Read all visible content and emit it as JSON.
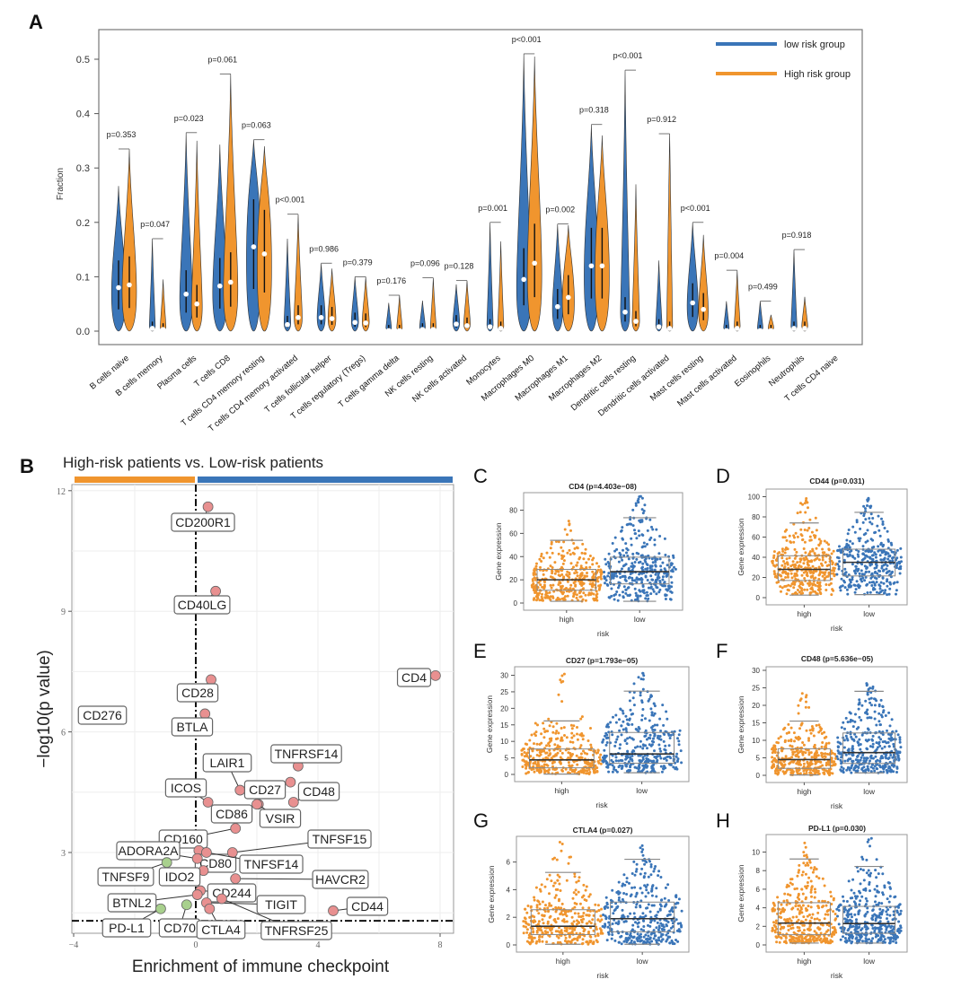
{
  "colors": {
    "low": "#3a75b8",
    "high": "#f0952e",
    "up_point": "#e89090",
    "down_point": "#a8d08d",
    "axis": "#555555",
    "grid": "#eeeeee"
  },
  "chart_data": [
    {
      "id": "A",
      "type": "violin",
      "panel_label": "A",
      "title": "",
      "xlabel": "",
      "ylabel": "Fraction",
      "ylim": [
        0,
        0.55
      ],
      "yticks": [
        0.0,
        0.1,
        0.2,
        0.3,
        0.4,
        0.5
      ],
      "ytick_labels": [
        "0.0",
        "0.1",
        "0.2",
        "0.3",
        "0.4",
        "0.5"
      ],
      "legend": {
        "position": "top-right",
        "entries": [
          {
            "name": "low risk group",
            "color": "#3a75b8"
          },
          {
            "name": "High risk group",
            "color": "#f0952e"
          }
        ]
      },
      "categories": [
        "B cells naive",
        "B cells memory",
        "Plasma cells",
        "T cells CD8",
        "T cells CD4 memory resting",
        "T cells CD4 memory activated",
        "T cells follicular helper",
        "T cells regulatory (Tregs)",
        "T cells gamma delta",
        "NK cells resting",
        "NK cells activated",
        "Monocytes",
        "Macrophages M0",
        "Macrophages M1",
        "Macrophages M2",
        "Dendritic cells resting",
        "Dendritic cells activated",
        "Mast cells resting",
        "Mast cells activated",
        "Eosinophils",
        "Neutrophils",
        "T cells CD4 naive"
      ],
      "p_values": [
        "p=0.353",
        "p=0.047",
        "p=0.023",
        "p=0.061",
        "p=0.063",
        "p<0.001",
        "p=0.986",
        "p=0.379",
        "p=0.176",
        "p=0.096",
        "p=0.128",
        "p=0.001",
        "p<0.001",
        "p=0.002",
        "p=0.318",
        "p<0.001",
        "p=0.912",
        "p<0.001",
        "p=0.004",
        "p=0.499",
        "p=0.918",
        ""
      ],
      "series": [
        {
          "name": "low risk group",
          "medians": [
            0.08,
            0.005,
            0.068,
            0.083,
            0.155,
            0.012,
            0.025,
            0.016,
            0.001,
            0.003,
            0.013,
            0.008,
            0.095,
            0.045,
            0.12,
            0.035,
            0.008,
            0.052,
            0.001,
            0.001,
            0.005,
            0
          ],
          "max": [
            0.267,
            0.17,
            0.365,
            0.343,
            0.352,
            0.17,
            0.125,
            0.1,
            0.052,
            0.056,
            0.086,
            0.2,
            0.51,
            0.197,
            0.38,
            0.48,
            0.13,
            0.2,
            0.055,
            0.055,
            0.15,
            0
          ]
        },
        {
          "name": "High risk group",
          "medians": [
            0.085,
            0.003,
            0.05,
            0.09,
            0.142,
            0.025,
            0.023,
            0.015,
            0.001,
            0.003,
            0.01,
            0.005,
            0.125,
            0.062,
            0.12,
            0.018,
            0.005,
            0.04,
            0.005,
            0.001,
            0.005,
            0
          ],
          "max": [
            0.335,
            0.095,
            0.35,
            0.473,
            0.34,
            0.215,
            0.115,
            0.1,
            0.066,
            0.098,
            0.093,
            0.165,
            0.505,
            0.195,
            0.36,
            0.27,
            0.363,
            0.177,
            0.112,
            0.03,
            0.063,
            0
          ]
        }
      ]
    },
    {
      "id": "B",
      "type": "scatter",
      "panel_label": "B",
      "title": "High-risk patients  vs. Low-risk patients",
      "xlabel": "Enrichment of immune checkpoint",
      "ylabel": "−log10(p value)",
      "xlim": [
        -4,
        8.4
      ],
      "ylim": [
        0.8,
        12
      ],
      "xticks": [
        -4,
        0,
        4,
        8
      ],
      "xtick_labels": [
        "−4",
        "0",
        "4",
        "8"
      ],
      "yticks": [
        3,
        6,
        9,
        12
      ],
      "ytick_labels": [
        "3",
        "6",
        "9",
        "12"
      ],
      "vline_x": 0,
      "hline_y": 1.3,
      "points": [
        {
          "label": "CD200R1",
          "x": 0.4,
          "y": 11.6,
          "group": "up"
        },
        {
          "label": "CD40LG",
          "x": 0.65,
          "y": 9.5,
          "group": "up"
        },
        {
          "label": "CD4",
          "x": 7.85,
          "y": 7.4,
          "group": "up"
        },
        {
          "label": "CD28",
          "x": 0.5,
          "y": 7.3,
          "group": "up"
        },
        {
          "label": "CD276",
          "x": -3.5,
          "y": 6.4,
          "group": "down"
        },
        {
          "label": "BTLA",
          "x": 0.3,
          "y": 6.45,
          "group": "up"
        },
        {
          "label": "TNFRSF14",
          "x": 3.35,
          "y": 5.15,
          "group": "up"
        },
        {
          "label": "LAIR1",
          "x": 1.45,
          "y": 4.55,
          "group": "up"
        },
        {
          "label": "CD27",
          "x": 3.1,
          "y": 4.75,
          "group": "up"
        },
        {
          "label": "CD48",
          "x": 3.2,
          "y": 4.25,
          "group": "up"
        },
        {
          "label": "ICOS",
          "x": 0.4,
          "y": 4.25,
          "group": "up"
        },
        {
          "label": "CD86",
          "x": 2.05,
          "y": 4.2,
          "group": "up"
        },
        {
          "label": "VSIR",
          "x": 2.0,
          "y": 4.2,
          "group": "up"
        },
        {
          "label": "CD160",
          "x": 1.3,
          "y": 3.6,
          "group": "up"
        },
        {
          "label": "CD80",
          "x": 0.1,
          "y": 3.05,
          "group": "up"
        },
        {
          "label": "TNFSF15",
          "x": 1.2,
          "y": 3.0,
          "group": "up"
        },
        {
          "label": "ADORA2A",
          "x": 0.05,
          "y": 2.85,
          "group": "up"
        },
        {
          "label": "TNFSF14",
          "x": 0.35,
          "y": 3.0,
          "group": "up"
        },
        {
          "label": "TNFSF9",
          "x": -0.95,
          "y": 2.75,
          "group": "down"
        },
        {
          "label": "IDO2",
          "x": 0.25,
          "y": 2.55,
          "group": "up"
        },
        {
          "label": "HAVCR2",
          "x": 1.3,
          "y": 2.35,
          "group": "up"
        },
        {
          "label": "CD244",
          "x": 0.15,
          "y": 2.05,
          "group": "up"
        },
        {
          "label": "BTNL2",
          "x": 0.05,
          "y": 1.95,
          "group": "up"
        },
        {
          "label": "TIGIT",
          "x": 0.35,
          "y": 1.75,
          "group": "up"
        },
        {
          "label": "TNFRSF25",
          "x": 0.85,
          "y": 1.85,
          "group": "up"
        },
        {
          "label": "CD44",
          "x": 4.5,
          "y": 1.55,
          "group": "up"
        },
        {
          "label": "PD-L1",
          "x": -1.15,
          "y": 1.6,
          "group": "down"
        },
        {
          "label": "CD70",
          "x": -0.3,
          "y": 1.7,
          "group": "down"
        },
        {
          "label": "CTLA4",
          "x": 0.45,
          "y": 1.6,
          "group": "up"
        }
      ]
    },
    {
      "id": "C",
      "type": "box",
      "panel_label": "C",
      "title": "CD4 (p=4.403e−08)",
      "xlabel": "risk",
      "ylabel": "Gene expression",
      "categories": [
        "high",
        "low"
      ],
      "ylim": [
        0,
        92
      ],
      "yticks": [
        0,
        20,
        40,
        60,
        80
      ],
      "boxes": [
        {
          "group": "high",
          "min": 1.5,
          "q1": 11,
          "median": 20,
          "q3": 29,
          "max": 54,
          "outlier_max": 71
        },
        {
          "group": "low",
          "min": 1.5,
          "q1": 16.5,
          "median": 27,
          "q3": 39.5,
          "max": 73.5,
          "outlier_max": 92
        }
      ]
    },
    {
      "id": "D",
      "type": "box",
      "panel_label": "D",
      "title": "CD44 (p=0.031)",
      "xlabel": "risk",
      "ylabel": "Gene expression",
      "categories": [
        "high",
        "low"
      ],
      "ylim": [
        0,
        104
      ],
      "yticks": [
        0,
        20,
        40,
        60,
        80,
        100
      ],
      "boxes": [
        {
          "group": "high",
          "min": 2.5,
          "q1": 17,
          "median": 28,
          "q3": 41.5,
          "max": 74,
          "outlier_max": 100
        },
        {
          "group": "low",
          "min": 3,
          "q1": 21.5,
          "median": 35,
          "q3": 48,
          "max": 84.5,
          "outlier_max": 99
        }
      ]
    },
    {
      "id": "E",
      "type": "box",
      "panel_label": "E",
      "title": "CD27 (p=1.793e−05)",
      "xlabel": "risk",
      "ylabel": "Gene expression",
      "categories": [
        "high",
        "low"
      ],
      "ylim": [
        0,
        31.5
      ],
      "yticks": [
        0,
        5,
        10,
        15,
        20,
        25,
        30
      ],
      "boxes": [
        {
          "group": "high",
          "min": 0.1,
          "q1": 2,
          "median": 4.4,
          "q3": 7.7,
          "max": 16.2,
          "outlier_max": 31.5
        },
        {
          "group": "low",
          "min": 0.5,
          "q1": 3.4,
          "median": 6.2,
          "q3": 12.7,
          "max": 25.2,
          "outlier_max": 31
        }
      ]
    },
    {
      "id": "F",
      "type": "box",
      "panel_label": "F",
      "title": "CD48 (p=5.636e−05)",
      "xlabel": "risk",
      "ylabel": "Gene expression",
      "categories": [
        "high",
        "low"
      ],
      "ylim": [
        0,
        30
      ],
      "yticks": [
        0,
        5,
        10,
        15,
        20,
        25,
        30
      ],
      "boxes": [
        {
          "group": "high",
          "min": 0.1,
          "q1": 2,
          "median": 4.5,
          "q3": 7.6,
          "max": 15.5,
          "outlier_max": 23.5
        },
        {
          "group": "low",
          "min": 0.7,
          "q1": 3.4,
          "median": 6.5,
          "q3": 12.1,
          "max": 24,
          "outlier_max": 27.2
        }
      ]
    },
    {
      "id": "G",
      "type": "box",
      "panel_label": "G",
      "title": "CTLA4 (p=0.027)",
      "xlabel": "risk",
      "ylabel": "Gene expression",
      "categories": [
        "high",
        "low"
      ],
      "ylim": [
        0,
        7.6
      ],
      "yticks": [
        0,
        2,
        4,
        6
      ],
      "boxes": [
        {
          "group": "high",
          "min": 0.05,
          "q1": 0.75,
          "median": 1.35,
          "q3": 2.55,
          "max": 5.25,
          "outlier_max": 7.5
        },
        {
          "group": "low",
          "min": 0.05,
          "q1": 0.95,
          "median": 1.9,
          "q3": 3.1,
          "max": 6.2,
          "outlier_max": 7.4
        }
      ]
    },
    {
      "id": "H",
      "type": "box",
      "panel_label": "H",
      "title": "PD-L1 (p=0.030)",
      "xlabel": "risk",
      "ylabel": "Gene expression",
      "categories": [
        "high",
        "low"
      ],
      "ylim": [
        0,
        11.5
      ],
      "yticks": [
        0,
        2,
        4,
        6,
        8,
        10
      ],
      "boxes": [
        {
          "group": "high",
          "min": 0.2,
          "q1": 1.1,
          "median": 2.35,
          "q3": 4.55,
          "max": 9.25,
          "outlier_max": 11
        },
        {
          "group": "low",
          "min": 0.2,
          "q1": 1.25,
          "median": 2.3,
          "q3": 4.15,
          "max": 8.45,
          "outlier_max": 11.5
        }
      ]
    }
  ]
}
